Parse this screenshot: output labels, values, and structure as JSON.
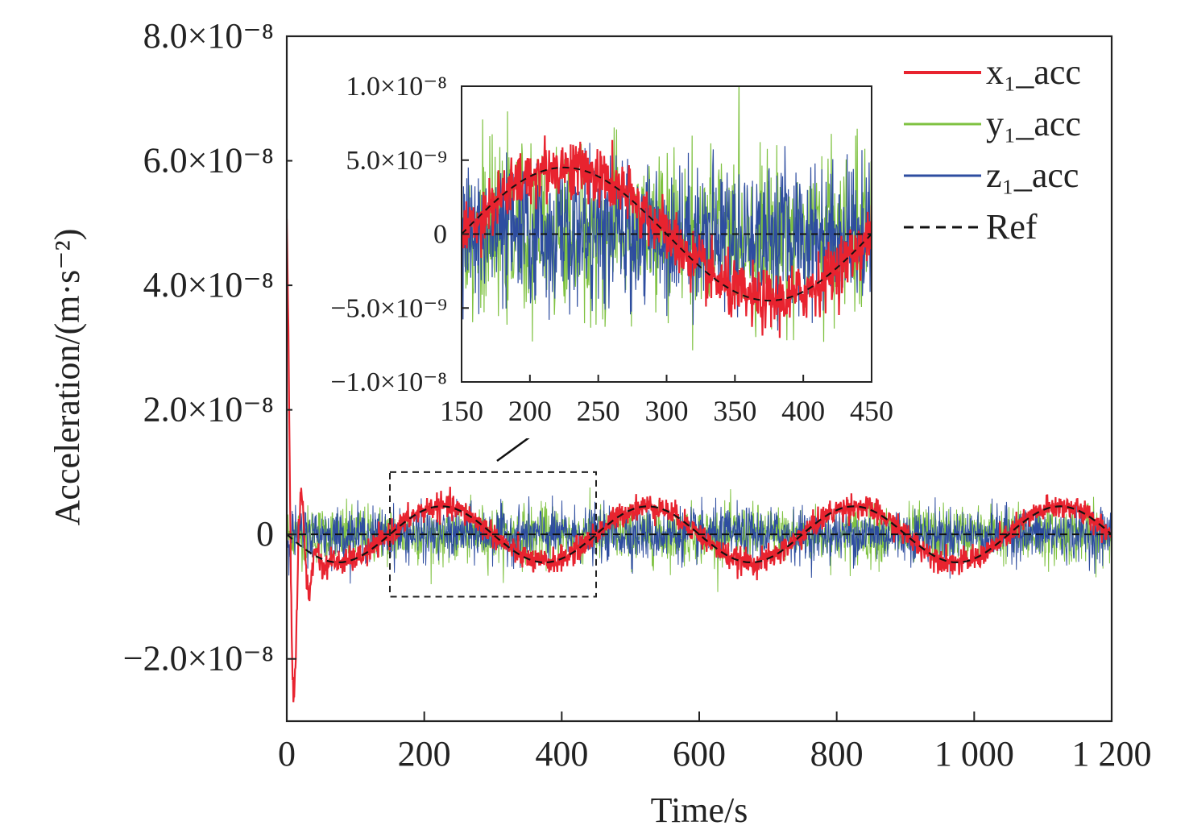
{
  "chart_data": {
    "type": "line",
    "xlabel": "Time/s",
    "ylabel": "Acceleration/(m·s⁻²)",
    "xlim": [
      0,
      1200
    ],
    "ylim": [
      -3e-08,
      8e-08
    ],
    "x_ticks": [
      0,
      200,
      400,
      600,
      800,
      1000,
      1200
    ],
    "x_tick_labels": [
      "0",
      "200",
      "400",
      "600",
      "800",
      "1 000",
      "1 200"
    ],
    "y_ticks": [
      -2e-08,
      0,
      2e-08,
      4e-08,
      6e-08,
      8e-08
    ],
    "y_tick_labels": [
      "−2.0×10⁻⁸",
      "0",
      "2.0×10⁻⁸",
      "4.0×10⁻⁸",
      "6.0×10⁻⁸",
      "8.0×10⁻⁸"
    ],
    "legend_position": "top-right",
    "series": [
      {
        "name": "x₁_acc",
        "color": "#e8232f",
        "style": "solid",
        "description_of_signal": "sinusoid following Ref with noise, large transient at start",
        "x": [
          0,
          5,
          10,
          15,
          20,
          25,
          30,
          35,
          40,
          45,
          50,
          60,
          70,
          80,
          100,
          150,
          200,
          230,
          300,
          380,
          450,
          530,
          600,
          680,
          750,
          830,
          900,
          980,
          1050,
          1130,
          1200
        ],
        "y": [
          5e-08,
          1e-08,
          -2e-08,
          -2.9e-08,
          -1e-08,
          1.2e-08,
          2e-09,
          -1.2e-08,
          -8e-09,
          -6e-09,
          -5e-09,
          -5e-09,
          -4.5e-09,
          -4e-09,
          -3e-09,
          -5e-10,
          3.8e-09,
          4.5e-09,
          1e-09,
          -4.5e-09,
          -1e-09,
          4.5e-09,
          1e-09,
          -4.5e-09,
          -1e-09,
          4.5e-09,
          1e-09,
          -4.5e-09,
          -1e-09,
          4.5e-09,
          5e-10
        ]
      },
      {
        "name": "y₁_acc",
        "color": "#7fc241",
        "style": "solid",
        "description_of_signal": "zero-mean noise, amplitude about 6×10⁻⁹"
      },
      {
        "name": "z₁_acc",
        "color": "#2e4da0",
        "style": "solid",
        "description_of_signal": "zero-mean noise, amplitude about 6×10⁻⁹"
      },
      {
        "name": "Ref",
        "color": "#111111",
        "style": "dashed",
        "description_of_signal": "sinusoid, amplitude 4.5×10⁻⁹, period 300 s, peak near 225 s",
        "x": [
          0,
          75,
          150,
          225,
          300,
          375,
          450,
          525,
          600,
          675,
          750,
          825,
          900,
          975,
          1050,
          1125,
          1200
        ],
        "y": [
          -3.5e-09,
          -4.5e-09,
          0,
          4.5e-09,
          0,
          -4.5e-09,
          0,
          4.5e-09,
          0,
          -4.5e-09,
          0,
          4.5e-09,
          0,
          -4.5e-09,
          0,
          4.5e-09,
          0
        ]
      }
    ],
    "inset": {
      "xlim": [
        150,
        450
      ],
      "ylim": [
        -1e-08,
        1e-08
      ],
      "x_ticks": [
        150,
        200,
        250,
        300,
        350,
        400,
        450
      ],
      "x_tick_labels": [
        "150",
        "200",
        "250",
        "300",
        "350",
        "400",
        "450"
      ],
      "y_ticks": [
        -1e-08,
        -5e-09,
        0,
        5e-09,
        1e-08
      ],
      "y_tick_labels": [
        "−1.0×10⁻⁸",
        "−5.0×10⁻⁹",
        "0",
        "5.0×10⁻⁹",
        "1.0×10⁻⁸"
      ]
    },
    "zoom_box": {
      "xlim": [
        150,
        450
      ],
      "ylim": [
        -1e-08,
        1e-08
      ]
    }
  }
}
